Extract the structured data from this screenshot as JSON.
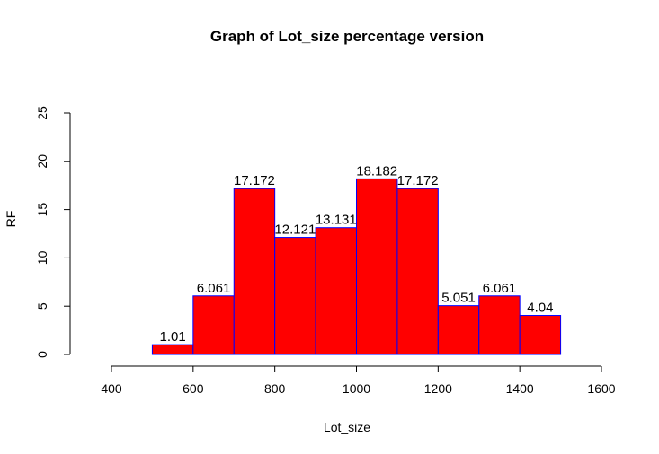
{
  "chart_data": {
    "type": "bar",
    "title": "Graph of Lot_size percentage version",
    "xlabel": "Lot_size",
    "ylabel": "RF",
    "xlim": [
      400,
      1600
    ],
    "ylim": [
      0,
      25
    ],
    "x_ticks": [
      "400",
      "600",
      "800",
      "1000",
      "1200",
      "1400",
      "1600"
    ],
    "y_ticks": [
      "0",
      "5",
      "10",
      "15",
      "20",
      "25"
    ],
    "bin_edges": [
      500,
      600,
      700,
      800,
      900,
      1000,
      1100,
      1200,
      1300,
      1400,
      1500
    ],
    "values": [
      1.01,
      6.061,
      17.172,
      12.121,
      13.131,
      18.182,
      17.172,
      5.051,
      6.061,
      4.04
    ],
    "data_labels": [
      "1.01",
      "6.061",
      "17.172",
      "12.121",
      "13.131",
      "18.182",
      "17.172",
      "5.051",
      "6.061",
      "4.04"
    ],
    "bar_fill": "#ff0000",
    "bar_border": "#0000ff",
    "grid": false
  }
}
